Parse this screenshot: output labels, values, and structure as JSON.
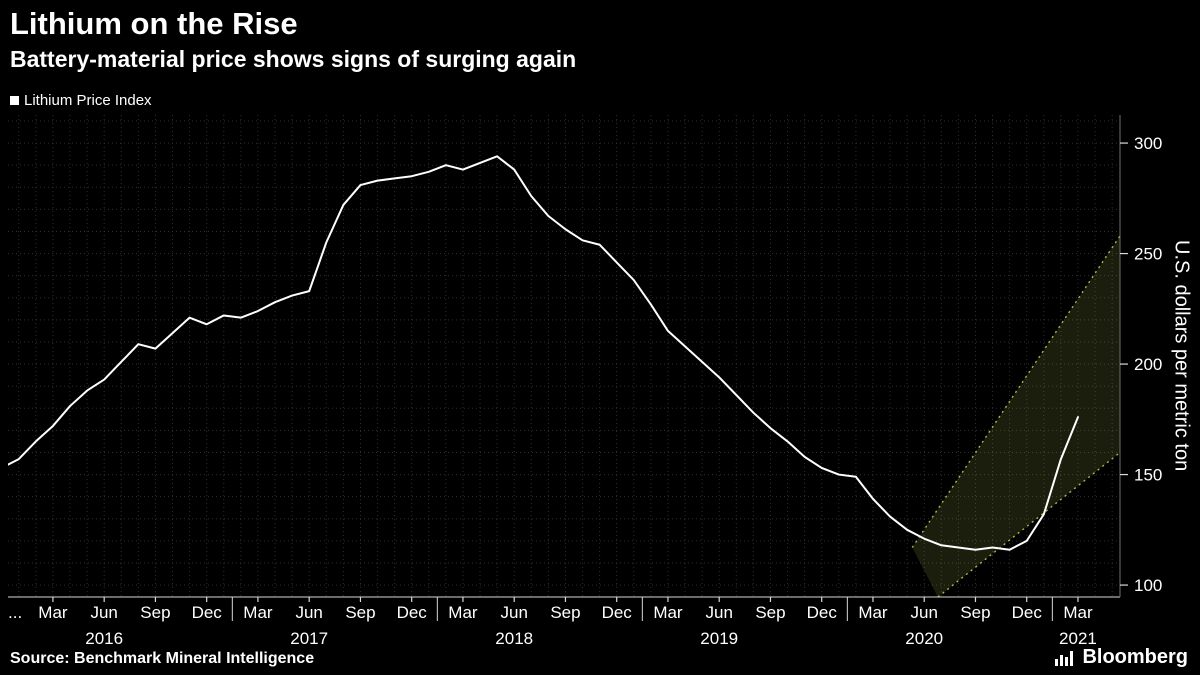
{
  "header": {
    "title": "Lithium on the Rise",
    "subtitle": "Battery-material price shows signs of surging again"
  },
  "legend": {
    "label": "Lithium Price Index",
    "marker_color": "#ffffff"
  },
  "footer": {
    "source": "Source: Benchmark Mineral Intelligence",
    "brand": "Bloomberg"
  },
  "colors": {
    "background": "#000000",
    "text": "#ffffff",
    "line": "#ffffff",
    "axis": "#d9d9d9",
    "right_axis_edge": "#6f6f6f",
    "band_fill": "rgba(170,185,80,0.16)",
    "band_edge": "#aab84f"
  },
  "chart_data": {
    "type": "line",
    "title": "Lithium on the Rise",
    "subtitle": "Battery-material price shows signs of surging again",
    "legend_entries": [
      "Lithium Price Index"
    ],
    "grid": {
      "color": "#2f2f2f",
      "dash": "1 3",
      "minor_x_step_months": 1
    },
    "y_axis": {
      "label": "U.S. dollars per metric ton",
      "ticks": [
        100,
        150,
        200,
        250,
        300
      ],
      "minor_step": 10,
      "range": [
        94.6,
        312.7
      ],
      "side": "right"
    },
    "x_axis": {
      "unit": "month",
      "start_month_index_0": "2016-01",
      "range": [
        -0.63,
        64.46
      ],
      "tick_labels": [
        {
          "index": -0.45,
          "label": "...",
          "anchor": "start",
          "tick": false
        },
        {
          "index": 2,
          "label": "Mar"
        },
        {
          "index": 5,
          "label": "Jun"
        },
        {
          "index": 8,
          "label": "Sep"
        },
        {
          "index": 11,
          "label": "Dec"
        },
        {
          "index": 14,
          "label": "Mar"
        },
        {
          "index": 17,
          "label": "Jun"
        },
        {
          "index": 20,
          "label": "Sep"
        },
        {
          "index": 23,
          "label": "Dec"
        },
        {
          "index": 26,
          "label": "Mar"
        },
        {
          "index": 29,
          "label": "Jun"
        },
        {
          "index": 32,
          "label": "Sep"
        },
        {
          "index": 35,
          "label": "Dec"
        },
        {
          "index": 38,
          "label": "Mar"
        },
        {
          "index": 41,
          "label": "Jun"
        },
        {
          "index": 44,
          "label": "Sep"
        },
        {
          "index": 47,
          "label": "Dec"
        },
        {
          "index": 50,
          "label": "Mar"
        },
        {
          "index": 53,
          "label": "Jun"
        },
        {
          "index": 56,
          "label": "Sep"
        },
        {
          "index": 59,
          "label": "Dec"
        },
        {
          "index": 62,
          "label": "Mar"
        }
      ],
      "year_labels": [
        {
          "index": 5,
          "label": "2016"
        },
        {
          "index": 17,
          "label": "2017"
        },
        {
          "index": 29,
          "label": "2018"
        },
        {
          "index": 41,
          "label": "2019"
        },
        {
          "index": 53,
          "label": "2020"
        },
        {
          "index": 62,
          "label": "2021"
        }
      ],
      "year_divider_indices": [
        12.5,
        24.5,
        36.5,
        48.5,
        60.5
      ]
    },
    "series": [
      {
        "name": "Lithium Price Index",
        "color": "#ffffff",
        "width": 2,
        "start_index": -1,
        "values": [
          153,
          157,
          165,
          172,
          181,
          188,
          193,
          201,
          209,
          207,
          214,
          221,
          218,
          222,
          221,
          224,
          228,
          231,
          233,
          255,
          272,
          281,
          283,
          284,
          285,
          287,
          290,
          288,
          291,
          294,
          288,
          276,
          267,
          261,
          256,
          254,
          246,
          238,
          227,
          215,
          208,
          201,
          194,
          186,
          178,
          171,
          165,
          158,
          153,
          150,
          149,
          139,
          131,
          125,
          121,
          118,
          117,
          116,
          117,
          116,
          120,
          132,
          157,
          176
        ]
      }
    ],
    "projection_band": {
      "shape": "channel",
      "upper": {
        "from": [
          52.3,
          117
        ],
        "to": [
          64.46,
          258
        ]
      },
      "lower": {
        "from": [
          53.8,
          94.6
        ],
        "to": [
          64.46,
          160
        ]
      },
      "fill": "rgba(170,185,80,0.16)",
      "edge_color": "#aab84f",
      "edge_dash": "2 4"
    }
  }
}
